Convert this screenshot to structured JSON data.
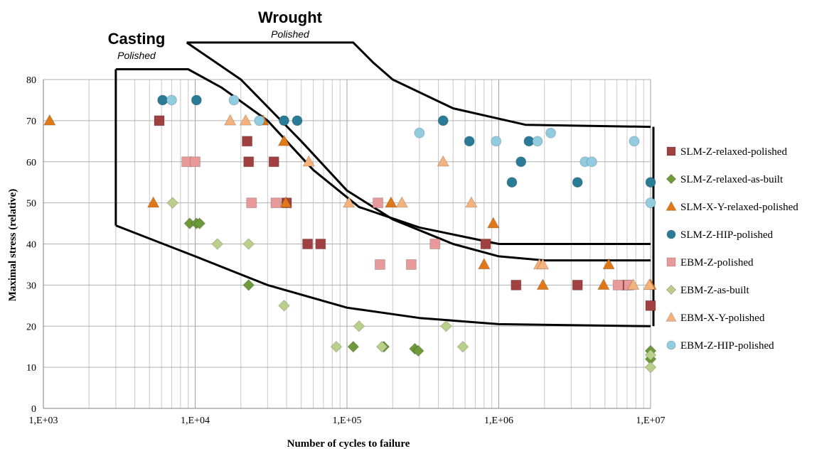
{
  "chart_data": {
    "type": "scatter",
    "x_scale": "log",
    "xlabel": "Number of cycles to failure",
    "ylabel": "Maximal stress (relative)",
    "xlim": [
      1000,
      10000000
    ],
    "ylim": [
      0,
      80
    ],
    "x_ticks": [
      {
        "value": 1000,
        "label": "1,E+03"
      },
      {
        "value": 10000,
        "label": "1,E+04"
      },
      {
        "value": 100000,
        "label": "1,E+05"
      },
      {
        "value": 1000000,
        "label": "1,E+06"
      },
      {
        "value": 10000000,
        "label": "1,E+07"
      }
    ],
    "y_ticks": [
      0,
      10,
      20,
      30,
      40,
      50,
      60,
      70,
      80
    ],
    "grid": true,
    "legend_position": "right",
    "regions": [
      {
        "title": "Casting",
        "subtitle": "Polished",
        "upper": [
          [
            3000,
            82.5
          ],
          [
            9000,
            82.5
          ],
          [
            15000,
            78
          ],
          [
            30000,
            70
          ],
          [
            60000,
            58
          ],
          [
            120000,
            49
          ],
          [
            300000,
            44
          ],
          [
            1000000,
            40
          ],
          [
            10000000,
            40
          ]
        ],
        "lower": [
          [
            3000,
            44.5
          ],
          [
            10000,
            37
          ],
          [
            30000,
            30
          ],
          [
            100000,
            24.5
          ],
          [
            300000,
            22
          ],
          [
            1000000,
            20.5
          ],
          [
            10000000,
            20
          ]
        ]
      },
      {
        "title": "Wrought",
        "subtitle": "Polished",
        "upper": [
          [
            8800,
            89
          ],
          [
            110000,
            89
          ],
          [
            150000,
            84
          ],
          [
            200000,
            80
          ],
          [
            500000,
            73
          ],
          [
            1500000,
            69
          ],
          [
            10000000,
            68.5
          ]
        ],
        "lower": [
          [
            8800,
            89
          ],
          [
            20000,
            80
          ],
          [
            50000,
            65
          ],
          [
            100000,
            53
          ],
          [
            200000,
            46
          ],
          [
            500000,
            40
          ],
          [
            1000000,
            37
          ],
          [
            2000000,
            36
          ],
          [
            10000000,
            36
          ]
        ]
      }
    ],
    "series": [
      {
        "name": "SLM-Z-relaxed-polished",
        "marker": "square",
        "color": "#A04040",
        "points": [
          [
            5800,
            70
          ],
          [
            22000,
            65
          ],
          [
            22500,
            60
          ],
          [
            33000,
            60
          ],
          [
            40000,
            50
          ],
          [
            55000,
            40
          ],
          [
            67000,
            40
          ],
          [
            820000,
            40
          ],
          [
            1300000,
            30
          ],
          [
            3300000,
            30
          ],
          [
            6900000,
            30
          ],
          [
            10000000,
            25
          ]
        ]
      },
      {
        "name": "SLM-Z-relaxed-as-built",
        "marker": "diamond",
        "color": "#6E9A3A",
        "points": [
          [
            9200,
            45
          ],
          [
            10200,
            45
          ],
          [
            10700,
            45
          ],
          [
            22500,
            30
          ],
          [
            110000,
            15
          ],
          [
            175000,
            15
          ],
          [
            280000,
            14.5
          ],
          [
            295000,
            14
          ],
          [
            10000000,
            14
          ],
          [
            10000000,
            12
          ]
        ]
      },
      {
        "name": "SLM-X-Y-relaxed-polished",
        "marker": "triangle",
        "color": "#E07818",
        "points": [
          [
            1100,
            70
          ],
          [
            5300,
            50
          ],
          [
            28000,
            70
          ],
          [
            38500,
            65
          ],
          [
            39500,
            50
          ],
          [
            195000,
            50
          ],
          [
            920000,
            45
          ],
          [
            800000,
            35
          ],
          [
            1950000,
            30
          ],
          [
            5300000,
            35
          ],
          [
            4900000,
            30
          ],
          [
            10000000,
            30
          ]
        ]
      },
      {
        "name": "SLM-Z-HIP-polished",
        "marker": "circle",
        "color": "#2A7C96",
        "points": [
          [
            6100,
            75
          ],
          [
            10200,
            75
          ],
          [
            38500,
            70
          ],
          [
            47000,
            70
          ],
          [
            430000,
            70
          ],
          [
            640000,
            65
          ],
          [
            1400000,
            60
          ],
          [
            1220000,
            55
          ],
          [
            1580000,
            65
          ],
          [
            3300000,
            55
          ],
          [
            10000000,
            55
          ]
        ]
      },
      {
        "name": "EBM-Z-polished",
        "marker": "square",
        "color": "#E89A9A",
        "points": [
          [
            8800,
            60
          ],
          [
            10000,
            60
          ],
          [
            23500,
            50
          ],
          [
            34000,
            50
          ],
          [
            160000,
            50
          ],
          [
            165000,
            35
          ],
          [
            265000,
            35
          ],
          [
            380000,
            40
          ],
          [
            6100000,
            30
          ],
          [
            7200000,
            30
          ]
        ]
      },
      {
        "name": "EBM-Z-as-built",
        "marker": "diamond",
        "color": "#B8D08A",
        "points": [
          [
            7100,
            50
          ],
          [
            14000,
            40
          ],
          [
            22500,
            40
          ],
          [
            38500,
            25
          ],
          [
            85000,
            15
          ],
          [
            120000,
            20
          ],
          [
            170000,
            15
          ],
          [
            450000,
            20
          ],
          [
            580000,
            15
          ],
          [
            10000000,
            13
          ],
          [
            10000000,
            10
          ]
        ]
      },
      {
        "name": "EBM-X-Y-polished",
        "marker": "triangle",
        "color": "#F5B27C",
        "points": [
          [
            17000,
            70
          ],
          [
            21500,
            70
          ],
          [
            56000,
            60
          ],
          [
            103000,
            50
          ],
          [
            230000,
            50
          ],
          [
            430000,
            60
          ],
          [
            660000,
            50
          ],
          [
            1850000,
            35
          ],
          [
            1950000,
            35
          ],
          [
            7700000,
            30
          ],
          [
            9800000,
            30
          ]
        ]
      },
      {
        "name": "EBM-Z-HIP-polished",
        "marker": "circle",
        "color": "#92CCE0",
        "points": [
          [
            7000,
            75
          ],
          [
            18000,
            75
          ],
          [
            26500,
            70
          ],
          [
            300000,
            67
          ],
          [
            960000,
            65
          ],
          [
            1800000,
            65
          ],
          [
            2200000,
            67
          ],
          [
            3700000,
            60
          ],
          [
            4100000,
            60
          ],
          [
            7800000,
            65
          ],
          [
            10000000,
            50
          ]
        ]
      }
    ]
  }
}
